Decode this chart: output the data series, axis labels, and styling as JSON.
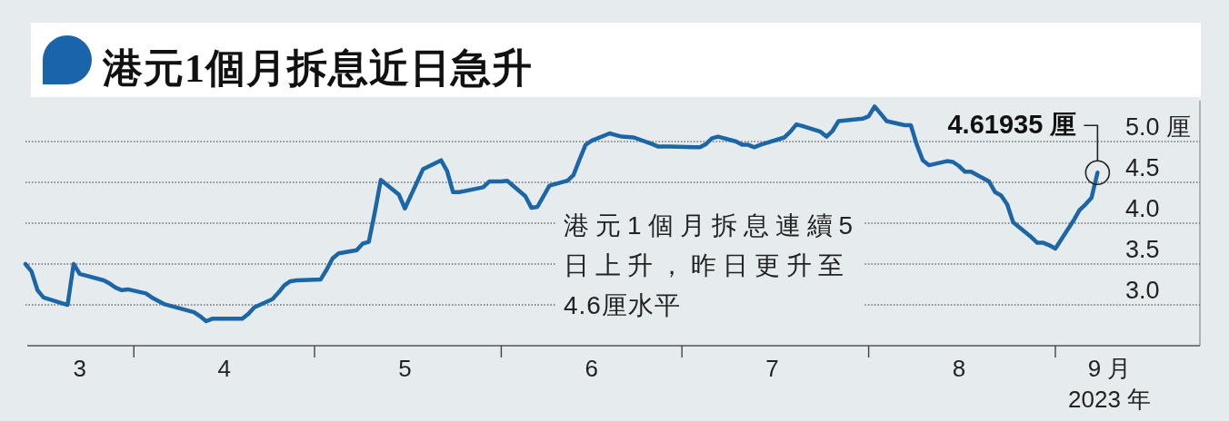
{
  "chart_data": {
    "type": "line",
    "title": "港元1個月拆息近日急升",
    "xlabel": "2023 年",
    "x": [
      "2023-03-14",
      "2023-03-15",
      "2023-03-16",
      "2023-03-17",
      "2023-03-20",
      "2023-03-21",
      "2023-03-22",
      "2023-03-23",
      "2023-03-24",
      "2023-03-27",
      "2023-03-28",
      "2023-03-29",
      "2023-03-30",
      "2023-03-31",
      "2023-04-03",
      "2023-04-04",
      "2023-04-06",
      "2023-04-11",
      "2023-04-12",
      "2023-04-13",
      "2023-04-14",
      "2023-04-17",
      "2023-04-18",
      "2023-04-19",
      "2023-04-20",
      "2023-04-21",
      "2023-04-24",
      "2023-04-25",
      "2023-04-26",
      "2023-04-27",
      "2023-04-28",
      "2023-05-02",
      "2023-05-03",
      "2023-05-04",
      "2023-05-05",
      "2023-05-08",
      "2023-05-09",
      "2023-05-10",
      "2023-05-11",
      "2023-05-12",
      "2023-05-15",
      "2023-05-16",
      "2023-05-17",
      "2023-05-18",
      "2023-05-19",
      "2023-05-22",
      "2023-05-23",
      "2023-05-24",
      "2023-05-25",
      "2023-05-29",
      "2023-05-30",
      "2023-06-01",
      "2023-06-02",
      "2023-06-05",
      "2023-06-06",
      "2023-06-07",
      "2023-06-08",
      "2023-06-09",
      "2023-06-12",
      "2023-06-13",
      "2023-06-14",
      "2023-06-15",
      "2023-06-16",
      "2023-06-19",
      "2023-06-20",
      "2023-06-21",
      "2023-06-23",
      "2023-06-26",
      "2023-06-27",
      "2023-06-29",
      "2023-07-03",
      "2023-07-04",
      "2023-07-05",
      "2023-07-06",
      "2023-07-07",
      "2023-07-10",
      "2023-07-11",
      "2023-07-12",
      "2023-07-13",
      "2023-07-14",
      "2023-07-18",
      "2023-07-19",
      "2023-07-20",
      "2023-07-21",
      "2023-07-24",
      "2023-07-25",
      "2023-07-26",
      "2023-07-27",
      "2023-07-31",
      "2023-08-01",
      "2023-08-02",
      "2023-08-03",
      "2023-08-04",
      "2023-08-07",
      "2023-08-08",
      "2023-08-09",
      "2023-08-10",
      "2023-08-11",
      "2023-08-14",
      "2023-08-15",
      "2023-08-16",
      "2023-08-17",
      "2023-08-18",
      "2023-08-21",
      "2023-08-22",
      "2023-08-23",
      "2023-08-24",
      "2023-08-25",
      "2023-08-28",
      "2023-08-29",
      "2023-08-30",
      "2023-08-31",
      "2023-09-01",
      "2023-09-04",
      "2023-09-05",
      "2023-09-06",
      "2023-09-07",
      "2023-09-08"
    ],
    "series": [
      {
        "color": "#1d66a6",
        "values": [
          3.5,
          3.41,
          3.18,
          3.09,
          3.02,
          3.0,
          3.5,
          3.38,
          3.36,
          3.3,
          3.26,
          3.21,
          3.18,
          3.19,
          3.14,
          3.09,
          3.01,
          2.91,
          2.86,
          2.8,
          2.83,
          2.83,
          2.83,
          2.83,
          2.89,
          2.97,
          3.07,
          3.15,
          3.24,
          3.29,
          3.3,
          3.31,
          3.43,
          3.57,
          3.63,
          3.67,
          3.75,
          3.77,
          4.13,
          4.53,
          4.35,
          4.18,
          4.34,
          4.5,
          4.66,
          4.77,
          4.64,
          4.38,
          4.38,
          4.44,
          4.51,
          4.51,
          4.52,
          4.33,
          4.19,
          4.2,
          4.33,
          4.46,
          4.52,
          4.59,
          4.78,
          4.96,
          5.01,
          5.1,
          5.08,
          5.06,
          5.05,
          4.97,
          4.94,
          4.94,
          4.93,
          4.93,
          4.97,
          5.04,
          5.06,
          5.0,
          4.96,
          4.96,
          4.93,
          4.96,
          5.05,
          5.12,
          5.21,
          5.19,
          5.12,
          5.06,
          5.13,
          5.25,
          5.28,
          5.31,
          5.43,
          5.34,
          5.25,
          5.2,
          5.2,
          4.96,
          4.77,
          4.71,
          4.76,
          4.75,
          4.7,
          4.63,
          4.63,
          4.51,
          4.38,
          4.34,
          4.23,
          4.01,
          3.83,
          3.76,
          3.76,
          3.73,
          3.69,
          4.03,
          4.16,
          4.23,
          4.31,
          4.61935
        ]
      }
    ],
    "xlim": [
      "2023-03-14",
      "2023-09-25"
    ],
    "xticks": [
      {
        "value": "2023-03-23",
        "label": "3"
      },
      {
        "value": "2023-04-01",
        "label": null
      },
      {
        "value": "2023-04-16",
        "label": "4"
      },
      {
        "value": "2023-05-01",
        "label": null
      },
      {
        "value": "2023-05-16",
        "label": "5"
      },
      {
        "value": "2023-06-01",
        "label": null
      },
      {
        "value": "2023-06-16",
        "label": "6"
      },
      {
        "value": "2023-07-01",
        "label": null
      },
      {
        "value": "2023-07-16",
        "label": "7"
      },
      {
        "value": "2023-08-01",
        "label": null
      },
      {
        "value": "2023-08-16",
        "label": "8"
      },
      {
        "value": "2023-09-01",
        "label": null
      },
      {
        "value": "2023-09-10",
        "label": "9 月"
      }
    ],
    "ylim": [
      2.5,
      5.5
    ],
    "yticks": [
      {
        "value": 5,
        "label": "5.0 厘"
      },
      {
        "value": 4.5,
        "label": "4.5"
      },
      {
        "value": 4,
        "label": "4.0"
      },
      {
        "value": 3.5,
        "label": "3.5"
      },
      {
        "value": 3,
        "label": "3.0"
      }
    ],
    "grid": "y",
    "annotations": [
      {
        "text": "4.61935 厘",
        "x": "2023-09-08",
        "y": 4.61935
      },
      "港元1個月拆息連續5\n日上升，昨日更升至\n4.6厘水平"
    ]
  }
}
